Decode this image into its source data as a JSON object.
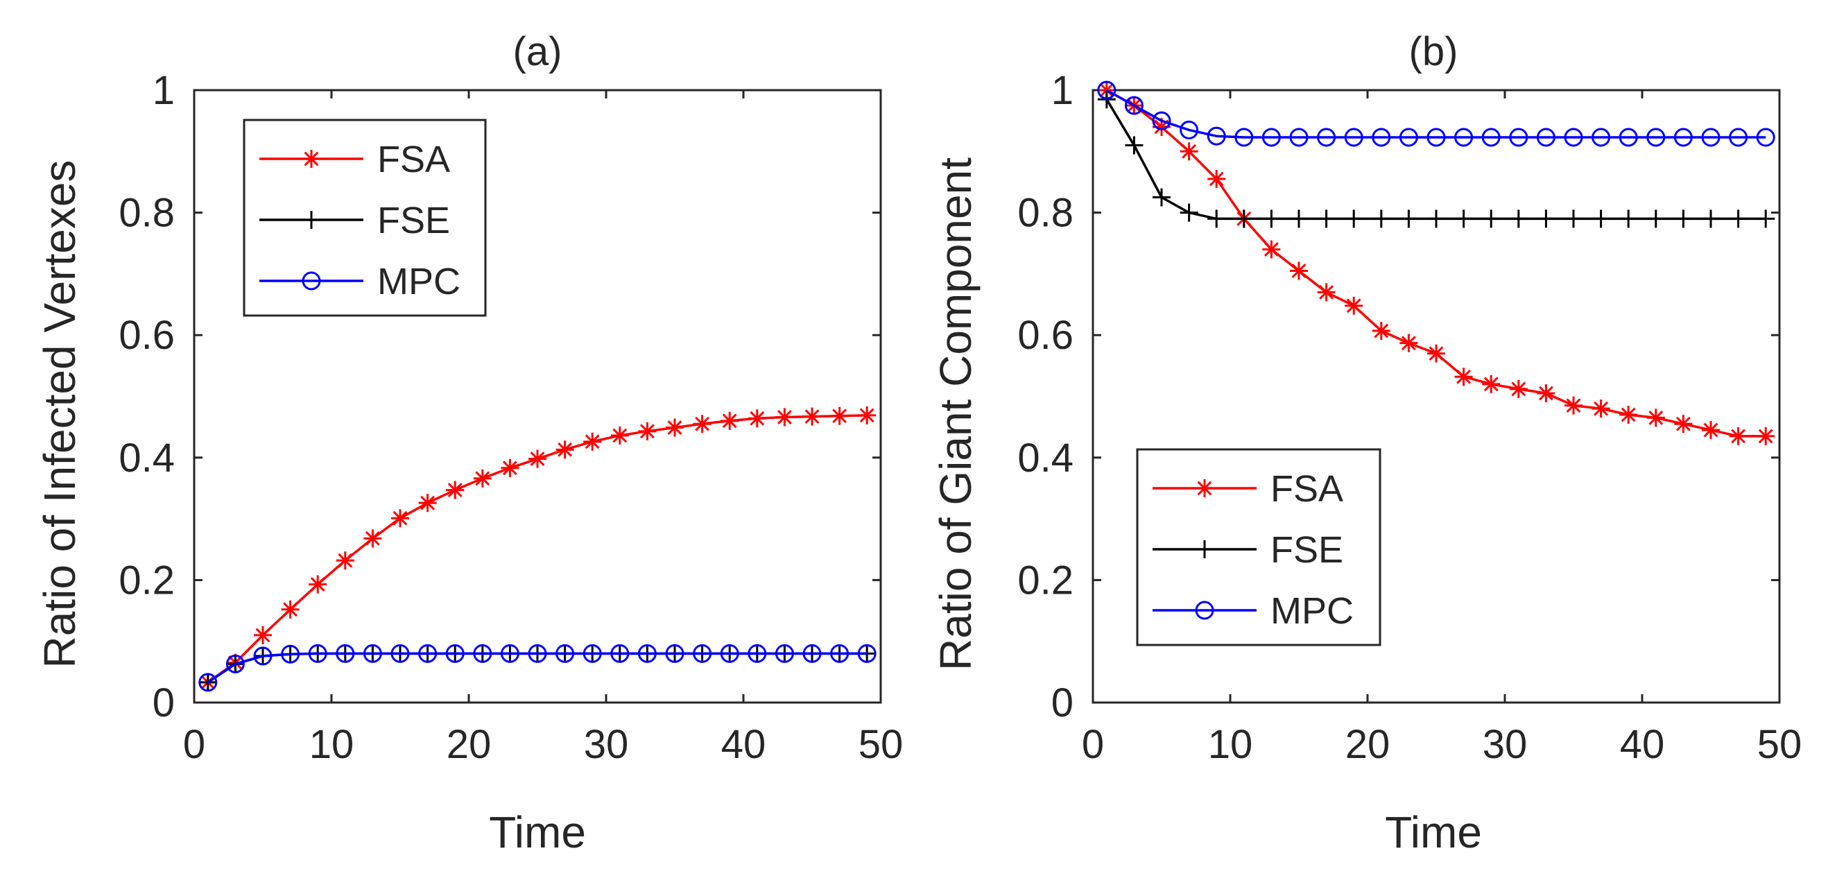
{
  "chart_data": [
    {
      "type": "line",
      "title": "(a)",
      "xlabel": "Time",
      "ylabel": "Ratio of Infected Vertexes",
      "xlim": [
        0,
        50
      ],
      "ylim": [
        0,
        1
      ],
      "xticks": [
        0,
        10,
        20,
        30,
        40,
        50
      ],
      "yticks": [
        0,
        0.2,
        0.4,
        0.6,
        0.8,
        1
      ],
      "x_tick_labels": [
        "0",
        "10",
        "20",
        "30",
        "40",
        "50"
      ],
      "y_tick_labels": [
        "0",
        "0.2",
        "0.4",
        "0.6",
        "0.8",
        "1"
      ],
      "legend_position": "top-left",
      "x": [
        1,
        3,
        5,
        7,
        9,
        11,
        13,
        15,
        17,
        19,
        21,
        23,
        25,
        27,
        29,
        31,
        33,
        35,
        37,
        39,
        41,
        43,
        45,
        47,
        49
      ],
      "series": [
        {
          "name": "FSA",
          "color": "#ff0000",
          "marker": "asterisk",
          "values": [
            0.033,
            0.065,
            0.11,
            0.152,
            0.193,
            0.232,
            0.268,
            0.301,
            0.326,
            0.347,
            0.366,
            0.383,
            0.398,
            0.413,
            0.426,
            0.436,
            0.443,
            0.449,
            0.455,
            0.46,
            0.464,
            0.466,
            0.467,
            0.468,
            0.469
          ]
        },
        {
          "name": "FSE",
          "color": "#000000",
          "marker": "plus",
          "values": [
            0.033,
            0.063,
            0.076,
            0.079,
            0.08,
            0.08,
            0.08,
            0.08,
            0.08,
            0.08,
            0.08,
            0.08,
            0.08,
            0.08,
            0.08,
            0.08,
            0.08,
            0.08,
            0.08,
            0.08,
            0.08,
            0.08,
            0.08,
            0.08,
            0.08
          ]
        },
        {
          "name": "MPC",
          "color": "#0000ff",
          "marker": "circle",
          "values": [
            0.033,
            0.063,
            0.076,
            0.079,
            0.08,
            0.08,
            0.08,
            0.08,
            0.08,
            0.08,
            0.08,
            0.08,
            0.08,
            0.08,
            0.08,
            0.08,
            0.08,
            0.08,
            0.08,
            0.08,
            0.08,
            0.08,
            0.08,
            0.08,
            0.08
          ]
        }
      ]
    },
    {
      "type": "line",
      "title": "(b)",
      "xlabel": "Time",
      "ylabel": "Ratio of Giant Component",
      "xlim": [
        0,
        50
      ],
      "ylim": [
        0,
        1
      ],
      "xticks": [
        0,
        10,
        20,
        30,
        40,
        50
      ],
      "yticks": [
        0,
        0.2,
        0.4,
        0.6,
        0.8,
        1
      ],
      "x_tick_labels": [
        "0",
        "10",
        "20",
        "30",
        "40",
        "50"
      ],
      "y_tick_labels": [
        "0",
        "0.2",
        "0.4",
        "0.6",
        "0.8",
        "1"
      ],
      "legend_position": "bottom-left",
      "x": [
        1,
        3,
        5,
        7,
        9,
        11,
        13,
        15,
        17,
        19,
        21,
        23,
        25,
        27,
        29,
        31,
        33,
        35,
        37,
        39,
        41,
        43,
        45,
        47,
        49
      ],
      "series": [
        {
          "name": "FSA",
          "color": "#ff0000",
          "marker": "asterisk",
          "values": [
            1.0,
            0.975,
            0.94,
            0.9,
            0.855,
            0.79,
            0.74,
            0.705,
            0.67,
            0.648,
            0.607,
            0.587,
            0.57,
            0.532,
            0.52,
            0.512,
            0.505,
            0.485,
            0.48,
            0.47,
            0.465,
            0.455,
            0.445,
            0.435,
            0.435
          ]
        },
        {
          "name": "FSE",
          "color": "#000000",
          "marker": "plus",
          "values": [
            0.985,
            0.91,
            0.825,
            0.8,
            0.79,
            0.79,
            0.79,
            0.79,
            0.79,
            0.79,
            0.79,
            0.79,
            0.79,
            0.79,
            0.79,
            0.79,
            0.79,
            0.79,
            0.79,
            0.79,
            0.79,
            0.79,
            0.79,
            0.79,
            0.79
          ]
        },
        {
          "name": "MPC",
          "color": "#0000ff",
          "marker": "circle",
          "values": [
            1.0,
            0.975,
            0.95,
            0.935,
            0.925,
            0.923,
            0.923,
            0.923,
            0.923,
            0.923,
            0.923,
            0.923,
            0.923,
            0.923,
            0.923,
            0.923,
            0.923,
            0.923,
            0.923,
            0.923,
            0.923,
            0.923,
            0.923,
            0.923,
            0.923
          ]
        }
      ]
    }
  ]
}
